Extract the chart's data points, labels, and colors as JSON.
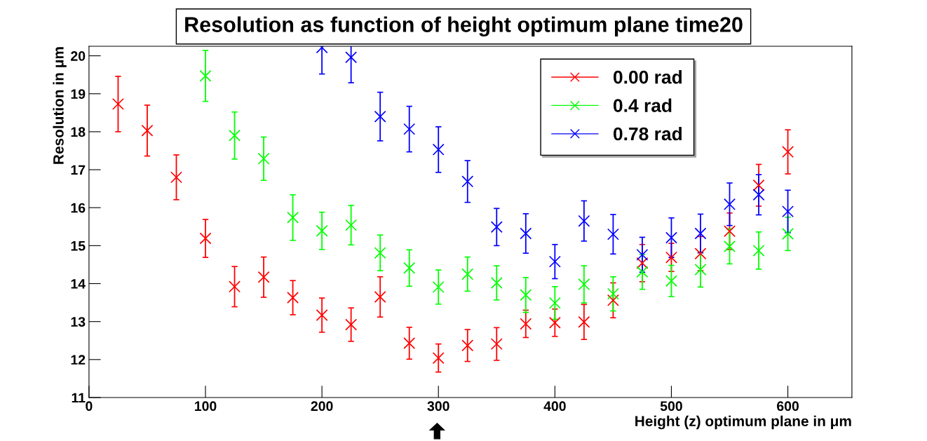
{
  "chart_data": {
    "type": "scatter",
    "title": "Resolution as function of height optimum plane time20",
    "xlabel": "Height (z) optimum plane in μm",
    "ylabel": "Resolution in μm",
    "xlim": [
      0,
      655
    ],
    "xticks": [
      0,
      100,
      200,
      300,
      400,
      500,
      600
    ],
    "ylim": [
      11,
      20.25
    ],
    "yticks": [
      11,
      12,
      13,
      14,
      15,
      16,
      17,
      18,
      19,
      20
    ],
    "grid": false,
    "legend": "top right",
    "marker": "cross",
    "series": [
      {
        "name": "0.00 rad",
        "color": "#ff0000",
        "x": [
          25,
          50,
          75,
          100,
          125,
          150,
          175,
          200,
          225,
          250,
          275,
          300,
          325,
          350,
          375,
          400,
          425,
          450,
          475,
          500,
          525,
          550,
          575,
          600
        ],
        "values": [
          18.73,
          18.03,
          16.8,
          15.19,
          13.92,
          14.17,
          13.63,
          13.17,
          12.92,
          13.65,
          12.43,
          12.04,
          12.37,
          12.41,
          12.94,
          12.97,
          12.99,
          13.56,
          14.54,
          14.69,
          14.79,
          15.38,
          16.59,
          17.47
        ],
        "errors": [
          0.73,
          0.67,
          0.59,
          0.5,
          0.53,
          0.53,
          0.45,
          0.45,
          0.44,
          0.53,
          0.42,
          0.37,
          0.42,
          0.43,
          0.36,
          0.36,
          0.46,
          0.46,
          0.49,
          0.37,
          0.45,
          0.48,
          0.55,
          0.58
        ]
      },
      {
        "name": "0.4 rad",
        "color": "#00ff00",
        "x": [
          100,
          125,
          150,
          175,
          200,
          225,
          250,
          275,
          300,
          325,
          350,
          375,
          400,
          425,
          450,
          475,
          500,
          525,
          550,
          575,
          600
        ],
        "values": [
          19.47,
          17.9,
          17.29,
          15.74,
          15.39,
          15.54,
          14.81,
          14.41,
          13.91,
          14.25,
          14.02,
          13.7,
          13.49,
          13.98,
          13.73,
          14.31,
          14.07,
          14.37,
          14.98,
          14.87,
          15.31
        ],
        "errors": [
          0.67,
          0.62,
          0.57,
          0.6,
          0.49,
          0.52,
          0.47,
          0.48,
          0.45,
          0.45,
          0.45,
          0.46,
          0.43,
          0.49,
          0.45,
          0.46,
          0.41,
          0.46,
          0.46,
          0.49,
          0.44
        ]
      },
      {
        "name": "0.78 rad",
        "color": "#0000ff",
        "x": [
          200,
          225,
          250,
          275,
          300,
          325,
          350,
          375,
          400,
          425,
          450,
          475,
          500,
          525,
          550,
          575,
          600
        ],
        "values": [
          20.22,
          19.96,
          18.4,
          18.07,
          17.53,
          16.69,
          15.49,
          15.32,
          14.58,
          15.65,
          15.3,
          14.76,
          15.21,
          15.32,
          16.09,
          16.34,
          15.9
        ],
        "errors": [
          0.7,
          0.67,
          0.64,
          0.6,
          0.6,
          0.55,
          0.49,
          0.52,
          0.45,
          0.53,
          0.52,
          0.46,
          0.52,
          0.51,
          0.56,
          0.53,
          0.56
        ]
      }
    ]
  }
}
